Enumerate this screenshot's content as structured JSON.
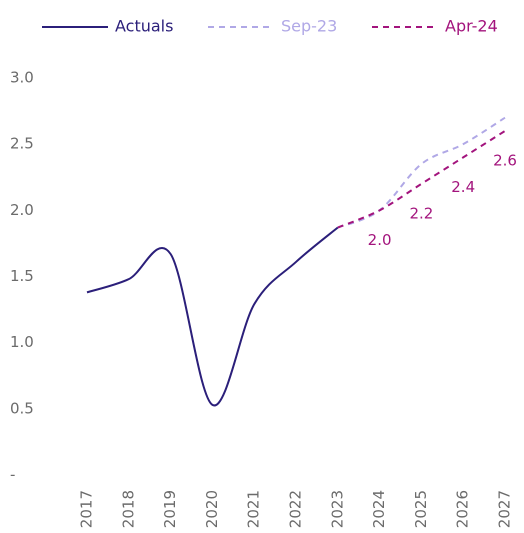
{
  "chart_data": {
    "type": "line",
    "categories": [
      "2017",
      "2018",
      "2019",
      "2020",
      "2021",
      "2022",
      "2023",
      "2024",
      "2025",
      "2026",
      "2027"
    ],
    "series": [
      {
        "name": "Actuals",
        "color": "#2b1f7a",
        "dash": false,
        "values": [
          1.38,
          1.48,
          1.67,
          0.53,
          1.29,
          1.61,
          1.87,
          null,
          null,
          null,
          null
        ]
      },
      {
        "name": "Sep-23",
        "color": "#b0a8e6",
        "dash": true,
        "values": [
          null,
          null,
          null,
          null,
          null,
          null,
          1.87,
          2.0,
          2.35,
          2.5,
          2.7
        ]
      },
      {
        "name": "Apr-24",
        "color": "#a3147d",
        "dash": true,
        "values": [
          null,
          null,
          null,
          null,
          null,
          null,
          1.87,
          2.0,
          2.2,
          2.4,
          2.6
        ],
        "value_labels": [
          null,
          null,
          null,
          null,
          null,
          null,
          null,
          "2.0",
          "2.2",
          "2.4",
          "2.6"
        ]
      }
    ],
    "ylim": [
      0,
      3
    ],
    "yticks": [
      {
        "value": 0,
        "label": "-"
      },
      0.5,
      {
        "value": 1,
        "label": "1.0"
      },
      1.5,
      {
        "value": 2,
        "label": "2.0"
      },
      2.5,
      {
        "value": 3,
        "label": "3.0"
      }
    ],
    "grid": false
  }
}
